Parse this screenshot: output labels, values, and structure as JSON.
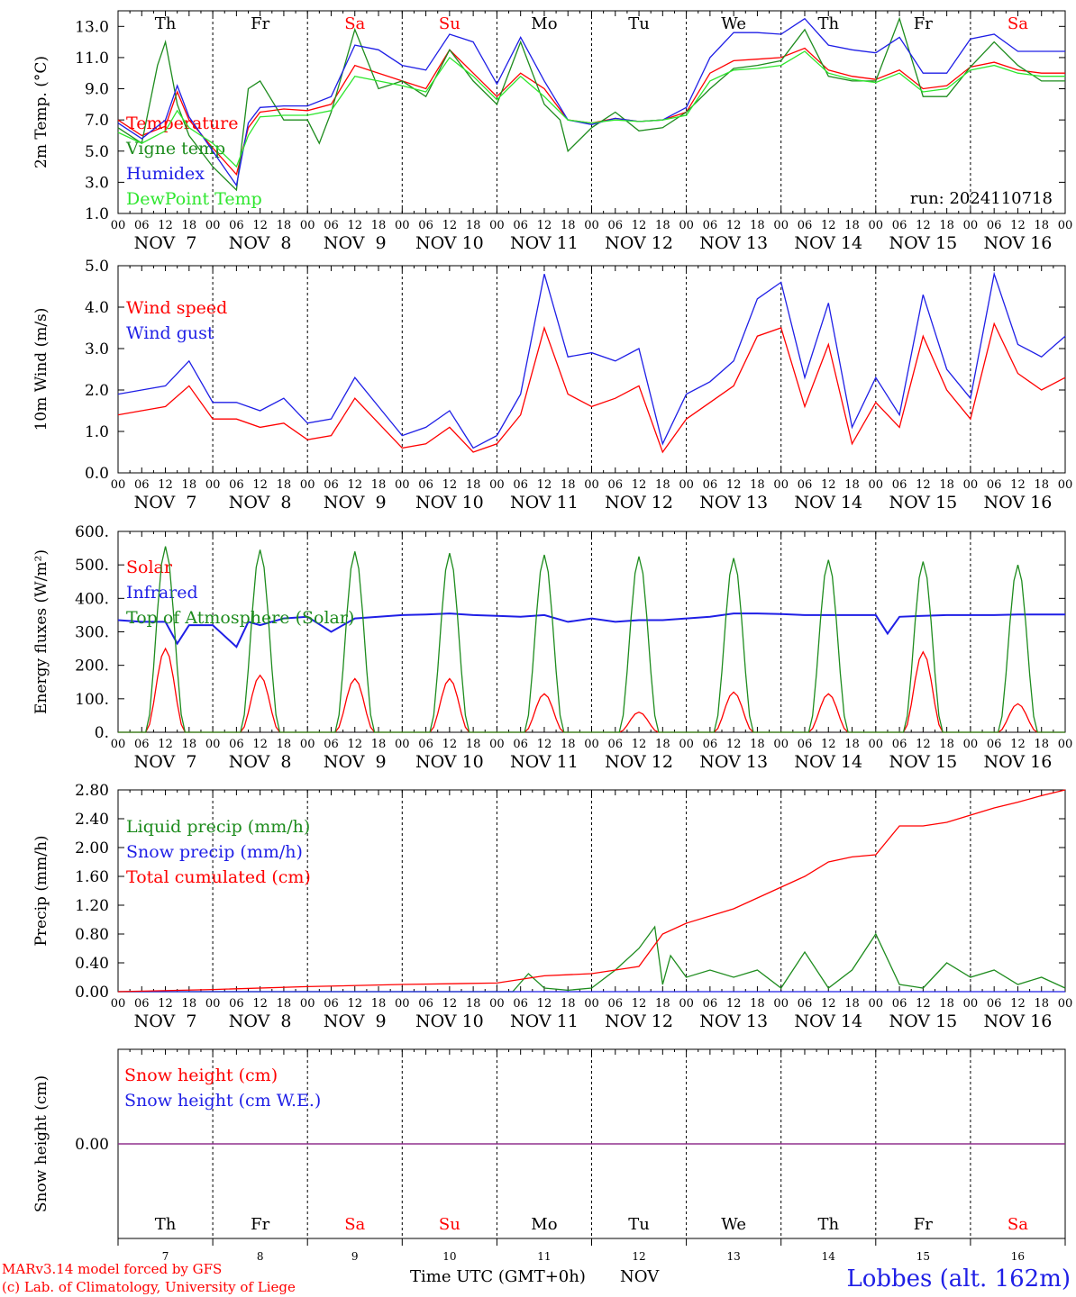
{
  "colors": {
    "red": "#ff0000",
    "green": "#1e8c1e",
    "blue": "#1f1fe6",
    "lightgreen": "#2ee62e",
    "purple": "#7a2e9e",
    "black": "#000000"
  },
  "day_axis": {
    "hour_ticks": [
      "00",
      "06",
      "12",
      "18"
    ],
    "end_tick": "00",
    "month_labels": [
      "NOV  7",
      "NOV  8",
      "NOV  9",
      "NOV 10",
      "NOV 11",
      "NOV 12",
      "NOV 13",
      "NOV 14",
      "NOV 15",
      "NOV 16"
    ],
    "weekdays": [
      "Th",
      "Fr",
      "Sa",
      "Su",
      "Mo",
      "Tu",
      "We",
      "Th",
      "Fr",
      "Sa"
    ],
    "weekday_colors": [
      "#000000",
      "#000000",
      "#ff0000",
      "#ff0000",
      "#000000",
      "#000000",
      "#000000",
      "#000000",
      "#000000",
      "#ff0000"
    ],
    "day_numbers": [
      "7",
      "8",
      "9",
      "10",
      "11",
      "12",
      "13",
      "14",
      "15",
      "16"
    ]
  },
  "footer": {
    "credit_line1": "MARv3.14 model forced by GFS",
    "credit_line2": "(c) Lab. of Climatology, University of Liege",
    "time_axis_label": "Time UTC (GMT+0h)",
    "month": "NOV",
    "station": "Lobbes (alt. 162m)"
  },
  "chart_data": [
    {
      "type": "line",
      "ylabel": "2m Temp. (°C)",
      "ylim": [
        1,
        14
      ],
      "yticks": [
        "1.0",
        "3.0",
        "5.0",
        "7.0",
        "9.0",
        "11.0",
        "13.0"
      ],
      "ytick_values": [
        1,
        3,
        5,
        7,
        9,
        11,
        13
      ],
      "annotation": "run: 2024110718",
      "x_unit": "hours since NOV 7 00 UTC",
      "series": [
        {
          "name": "Temperature",
          "color": "#ff0000",
          "x": [
            0,
            6,
            12,
            15,
            18,
            24,
            30,
            33,
            36,
            42,
            48,
            54,
            60,
            66,
            72,
            78,
            84,
            90,
            96,
            102,
            108,
            114,
            120,
            126,
            132,
            138,
            144,
            150,
            156,
            162,
            168,
            174,
            180,
            186,
            192,
            198,
            204,
            210,
            216,
            222,
            228,
            234,
            240
          ],
          "y": [
            7.0,
            6.0,
            6.6,
            8.8,
            7.0,
            5.2,
            3.5,
            6.5,
            7.5,
            7.7,
            7.6,
            8.0,
            10.5,
            10.0,
            9.5,
            9.0,
            11.5,
            10.0,
            8.5,
            10.0,
            9.0,
            7.0,
            6.8,
            7.1,
            6.9,
            7.0,
            7.5,
            10.0,
            10.8,
            10.9,
            11.0,
            11.6,
            10.2,
            9.8,
            9.6,
            10.2,
            9.0,
            9.2,
            10.4,
            10.7,
            10.2,
            10.0,
            10.0
          ]
        },
        {
          "name": "Vigne temp",
          "color": "#1e8c1e",
          "x": [
            0,
            6,
            10,
            12,
            15,
            18,
            24,
            30,
            33,
            36,
            42,
            48,
            51,
            54,
            60,
            66,
            72,
            78,
            84,
            90,
            96,
            102,
            108,
            112,
            114,
            120,
            126,
            132,
            138,
            144,
            150,
            156,
            162,
            168,
            174,
            180,
            186,
            192,
            198,
            204,
            210,
            216,
            222,
            228,
            234,
            240
          ],
          "y": [
            6.5,
            5.5,
            10.5,
            12.0,
            8.0,
            6.0,
            4.0,
            2.5,
            9.0,
            9.5,
            7.0,
            7.0,
            5.5,
            7.5,
            12.8,
            9.0,
            9.5,
            8.5,
            11.5,
            9.5,
            8.0,
            12.0,
            8.0,
            7.0,
            5.0,
            6.5,
            7.5,
            6.3,
            6.5,
            7.5,
            9.0,
            10.3,
            10.5,
            10.8,
            12.8,
            9.8,
            9.5,
            9.5,
            13.5,
            8.5,
            8.5,
            10.4,
            12.0,
            10.5,
            9.5,
            9.5
          ]
        },
        {
          "name": "Humidex",
          "color": "#1f1fe6",
          "x": [
            0,
            6,
            12,
            15,
            18,
            24,
            30,
            33,
            36,
            42,
            48,
            54,
            60,
            66,
            72,
            78,
            84,
            90,
            96,
            102,
            108,
            114,
            120,
            126,
            132,
            138,
            144,
            150,
            156,
            162,
            168,
            174,
            180,
            186,
            192,
            198,
            204,
            210,
            216,
            222,
            228,
            234,
            240
          ],
          "y": [
            6.8,
            5.8,
            7.0,
            9.2,
            7.2,
            5.0,
            2.8,
            6.8,
            7.8,
            7.9,
            7.9,
            8.5,
            11.8,
            11.5,
            10.5,
            10.2,
            12.5,
            12.0,
            9.3,
            12.3,
            9.5,
            7.0,
            6.7,
            7.1,
            6.9,
            7.0,
            7.8,
            11.0,
            12.6,
            12.6,
            12.5,
            13.5,
            11.8,
            11.5,
            11.3,
            12.3,
            10.0,
            10.0,
            12.2,
            12.5,
            11.4,
            11.4,
            11.4
          ]
        },
        {
          "name": "DewPoint Temp",
          "color": "#2ee62e",
          "x": [
            0,
            6,
            12,
            15,
            18,
            24,
            30,
            33,
            36,
            42,
            48,
            54,
            60,
            66,
            72,
            78,
            84,
            90,
            96,
            102,
            108,
            114,
            120,
            126,
            132,
            138,
            144,
            150,
            156,
            162,
            168,
            174,
            180,
            186,
            192,
            198,
            204,
            210,
            216,
            222,
            228,
            234,
            240
          ],
          "y": [
            6.2,
            5.5,
            6.3,
            7.6,
            6.5,
            5.5,
            4.0,
            6.0,
            7.2,
            7.3,
            7.3,
            7.6,
            9.8,
            9.5,
            9.2,
            8.8,
            11.0,
            9.8,
            8.3,
            9.8,
            8.5,
            7.0,
            6.8,
            7.0,
            6.9,
            7.0,
            7.3,
            9.5,
            10.2,
            10.3,
            10.5,
            11.4,
            10.0,
            9.6,
            9.4,
            10.0,
            8.8,
            9.0,
            10.2,
            10.5,
            10.0,
            9.8,
            9.8
          ]
        }
      ]
    },
    {
      "type": "line",
      "ylabel": "10m Wind (m/s)",
      "ylim": [
        0,
        5
      ],
      "yticks": [
        "0.0",
        "1.0",
        "2.0",
        "3.0",
        "4.0",
        "5.0"
      ],
      "ytick_values": [
        0,
        1,
        2,
        3,
        4,
        5
      ],
      "x_unit": "hours since NOV 7 00 UTC",
      "series": [
        {
          "name": "Wind speed",
          "color": "#ff0000",
          "x": [
            0,
            6,
            12,
            18,
            24,
            30,
            36,
            42,
            48,
            54,
            60,
            66,
            72,
            78,
            84,
            90,
            96,
            102,
            108,
            114,
            120,
            126,
            132,
            138,
            144,
            150,
            156,
            162,
            168,
            174,
            180,
            186,
            192,
            198,
            204,
            210,
            216,
            222,
            228,
            234,
            240
          ],
          "y": [
            1.4,
            1.5,
            1.6,
            2.1,
            1.3,
            1.3,
            1.1,
            1.2,
            0.8,
            0.9,
            1.8,
            1.2,
            0.6,
            0.7,
            1.1,
            0.5,
            0.7,
            1.4,
            3.5,
            1.9,
            1.6,
            1.8,
            2.1,
            0.5,
            1.3,
            1.7,
            2.1,
            3.3,
            3.5,
            1.6,
            3.1,
            0.7,
            1.7,
            1.1,
            3.3,
            2.0,
            1.3,
            3.6,
            2.4,
            2.0,
            2.3
          ]
        },
        {
          "name": "Wind gust",
          "color": "#1f1fe6",
          "x": [
            0,
            6,
            12,
            18,
            24,
            30,
            36,
            42,
            48,
            54,
            60,
            66,
            72,
            78,
            84,
            90,
            96,
            102,
            108,
            114,
            120,
            126,
            132,
            138,
            144,
            150,
            156,
            162,
            168,
            174,
            180,
            186,
            192,
            198,
            204,
            210,
            216,
            222,
            228,
            234,
            240
          ],
          "y": [
            1.9,
            2.0,
            2.1,
            2.7,
            1.7,
            1.7,
            1.5,
            1.8,
            1.2,
            1.3,
            2.3,
            1.6,
            0.9,
            1.1,
            1.5,
            0.6,
            0.9,
            1.9,
            4.8,
            2.8,
            2.9,
            2.7,
            3.0,
            0.7,
            1.9,
            2.2,
            2.7,
            4.2,
            4.6,
            2.3,
            4.1,
            1.1,
            2.3,
            1.4,
            4.3,
            2.5,
            1.8,
            4.8,
            3.1,
            2.8,
            3.3
          ]
        }
      ]
    },
    {
      "type": "line",
      "ylabel": "Energy fluxes (W/m²)",
      "ylim": [
        0,
        600
      ],
      "yticks": [
        "0.",
        "100.",
        "200.",
        "300.",
        "400.",
        "500.",
        "600."
      ],
      "ytick_values": [
        0,
        100,
        200,
        300,
        400,
        500,
        600
      ],
      "x_unit": "hours since NOV 7 00 UTC",
      "series": [
        {
          "name": "Solar",
          "color": "#ff0000",
          "daily_peak": [
            250,
            170,
            160,
            160,
            115,
            60,
            120,
            115,
            240,
            85
          ]
        },
        {
          "name": "Infrared",
          "color": "#1f1fe6",
          "x": [
            0,
            6,
            12,
            15,
            18,
            24,
            30,
            33,
            36,
            42,
            48,
            54,
            60,
            66,
            72,
            78,
            84,
            90,
            96,
            102,
            108,
            114,
            120,
            126,
            132,
            138,
            144,
            150,
            156,
            162,
            168,
            174,
            180,
            186,
            192,
            195,
            198,
            204,
            210,
            216,
            222,
            228,
            234,
            240
          ],
          "y": [
            335,
            330,
            330,
            265,
            320,
            320,
            255,
            330,
            320,
            340,
            345,
            300,
            340,
            345,
            350,
            352,
            355,
            350,
            348,
            345,
            350,
            330,
            340,
            330,
            335,
            335,
            340,
            345,
            355,
            355,
            353,
            350,
            350,
            350,
            350,
            295,
            345,
            348,
            350,
            350,
            350,
            352,
            352,
            352
          ]
        },
        {
          "name": "Top of Atmosphere (Solar)",
          "color": "#1e8c1e",
          "daily_peak": [
            555,
            545,
            540,
            535,
            530,
            525,
            520,
            515,
            510,
            500
          ]
        }
      ]
    },
    {
      "type": "line",
      "ylabel": "Precip (mm/h)",
      "ylim": [
        0,
        2.8
      ],
      "yticks": [
        "0.00",
        "0.40",
        "0.80",
        "1.20",
        "1.60",
        "2.00",
        "2.40",
        "2.80"
      ],
      "ytick_values": [
        0,
        0.4,
        0.8,
        1.2,
        1.6,
        2.0,
        2.4,
        2.8
      ],
      "x_unit": "hours since NOV 7 00 UTC",
      "series": [
        {
          "name": "Liquid precip (mm/h)",
          "color": "#1e8c1e",
          "x": [
            0,
            100,
            104,
            108,
            114,
            120,
            126,
            132,
            136,
            138,
            140,
            144,
            150,
            156,
            162,
            168,
            174,
            180,
            186,
            192,
            198,
            204,
            210,
            216,
            222,
            228,
            234,
            240
          ],
          "y": [
            0,
            0,
            0.25,
            0.05,
            0.02,
            0.05,
            0.3,
            0.6,
            0.9,
            0.1,
            0.5,
            0.2,
            0.3,
            0.2,
            0.3,
            0.05,
            0.55,
            0.05,
            0.3,
            0.8,
            0.1,
            0.05,
            0.4,
            0.2,
            0.3,
            0.1,
            0.2,
            0.05
          ]
        },
        {
          "name": "Snow precip (mm/h)",
          "color": "#1f1fe6",
          "x": [
            0,
            240
          ],
          "y": [
            0,
            0
          ]
        },
        {
          "name": "Total cumulated (cm)",
          "color": "#ff0000",
          "x": [
            0,
            24,
            48,
            72,
            96,
            108,
            120,
            126,
            132,
            138,
            144,
            156,
            168,
            174,
            180,
            186,
            192,
            198,
            204,
            210,
            216,
            222,
            228,
            234,
            240
          ],
          "y": [
            0.0,
            0.03,
            0.07,
            0.1,
            0.12,
            0.22,
            0.25,
            0.3,
            0.35,
            0.8,
            0.95,
            1.15,
            1.45,
            1.6,
            1.8,
            1.87,
            1.9,
            2.3,
            2.3,
            2.35,
            2.45,
            2.55,
            2.63,
            2.72,
            2.8
          ]
        }
      ]
    },
    {
      "type": "line",
      "ylabel": "Snow height (cm)",
      "ylim": [
        -1,
        1
      ],
      "yticks": [
        "0.00"
      ],
      "ytick_values": [
        0
      ],
      "x_unit": "hours since NOV 7 00 UTC",
      "series": [
        {
          "name": "Snow height (cm)",
          "color": "#ff0000",
          "x": [
            0,
            240
          ],
          "y": [
            0,
            0
          ]
        },
        {
          "name": "Snow height (cm W.E.)",
          "color": "#1f1fe6",
          "x": [
            0,
            240
          ],
          "y": [
            0,
            0
          ]
        }
      ]
    }
  ]
}
